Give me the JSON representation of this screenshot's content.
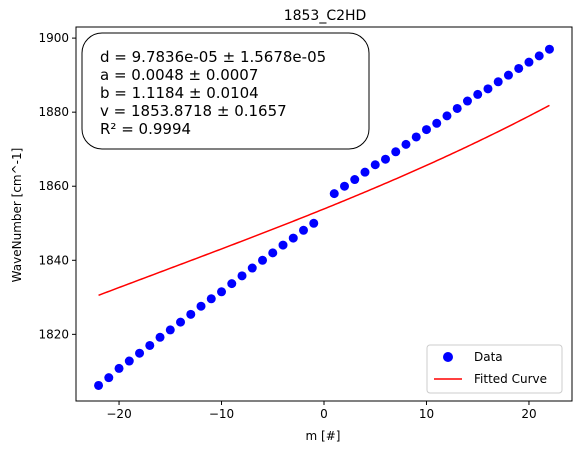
{
  "chart_data": {
    "type": "scatter",
    "title": "1853_C2HD",
    "xlabel": "m [#]",
    "ylabel": "WaveNumber [cm^-1]",
    "xlim": [
      -24.2,
      24.2
    ],
    "ylim": [
      1802,
      1903
    ],
    "x_ticks": [
      -20,
      -10,
      0,
      10,
      20
    ],
    "x_tick_labels": [
      "−20",
      "−10",
      "0",
      "10",
      "20"
    ],
    "y_ticks": [
      1820,
      1840,
      1860,
      1880,
      1900
    ],
    "y_tick_labels": [
      "1820",
      "1840",
      "1860",
      "1880",
      "1900"
    ],
    "grid": false,
    "legend_position": "bottom-right",
    "fit": {
      "d": 9.7836e-05,
      "a": 0.0048,
      "b": 1.1184,
      "v": 1853.8718
    },
    "stats": [
      "d = 9.7836e-05 ± 1.5678e-05",
      "a = 0.0048 ± 0.0007",
      "b = 1.1184 ± 0.0104",
      "v = 1853.8718 ± 0.1657",
      "R² = 0.9994"
    ],
    "series": [
      {
        "name": "Data",
        "kind": "scatter",
        "color": "#0000ff",
        "x": [
          -22,
          -21,
          -20,
          -19,
          -18,
          -17,
          -16,
          -15,
          -14,
          -13,
          -12,
          -11,
          -10,
          -9,
          -8,
          -7,
          -6,
          -5,
          -4,
          -3,
          -2,
          -1,
          1,
          2,
          3,
          4,
          5,
          6,
          7,
          8,
          9,
          10,
          11,
          12,
          13,
          14,
          15,
          16,
          17,
          18,
          19,
          20,
          21,
          22
        ],
        "y": [
          1806.2,
          1808.3,
          1810.8,
          1812.8,
          1814.9,
          1817.0,
          1819.2,
          1821.2,
          1823.3,
          1825.4,
          1827.6,
          1829.6,
          1831.5,
          1833.7,
          1835.8,
          1837.9,
          1840.0,
          1842.0,
          1844.1,
          1846.0,
          1848.1,
          1850.0,
          1858.0,
          1860.0,
          1861.8,
          1863.8,
          1865.8,
          1867.3,
          1869.3,
          1871.3,
          1873.3,
          1875.3,
          1877.0,
          1879.0,
          1881.0,
          1883.0,
          1884.8,
          1886.3,
          1888.2,
          1890.0,
          1891.8,
          1893.5,
          1895.2,
          1897.0
        ]
      },
      {
        "name": "Fitted Curve",
        "kind": "line",
        "color": "#ff0000"
      }
    ]
  }
}
